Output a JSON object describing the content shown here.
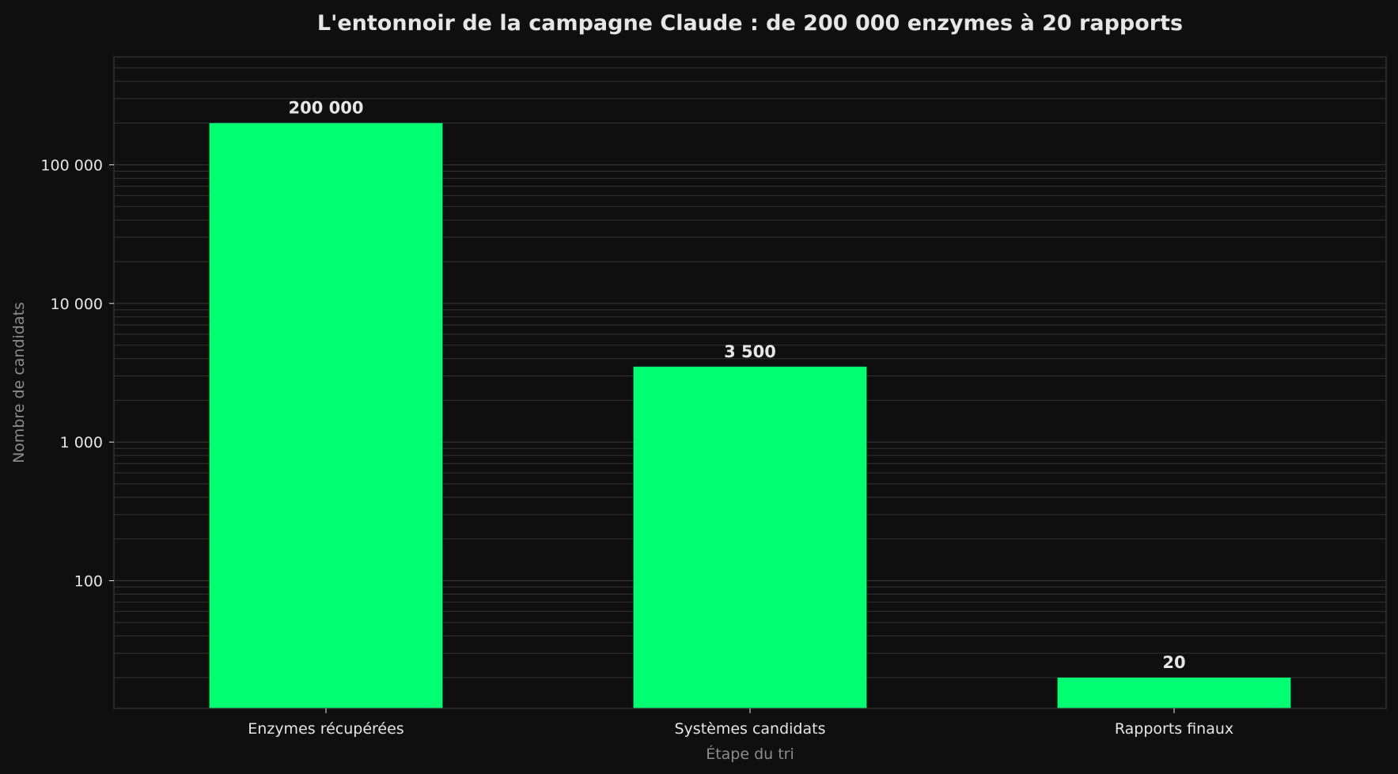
{
  "chart_data": {
    "type": "bar",
    "title": "L'entonnoir de la campagne Claude : de 200 000 enzymes à 20 rapports",
    "xlabel": "Étape du tri",
    "ylabel": "Nombre de candidats",
    "categories": [
      "Enzymes récupérées",
      "Systèmes candidats",
      "Rapports finaux"
    ],
    "values": [
      200000,
      3500,
      20
    ],
    "value_labels": [
      "200 000",
      "3 500",
      "20"
    ],
    "yscale": "log",
    "ylim": [
      12,
      600000
    ],
    "yticks": [
      {
        "value": 100,
        "label": "100"
      },
      {
        "value": 1000,
        "label": "1 000"
      },
      {
        "value": 10000,
        "label": "10 000"
      },
      {
        "value": 100000,
        "label": "100 000"
      }
    ],
    "grid": true,
    "legend": "none",
    "colors": {
      "background": "#0f0f0f",
      "bar": "#00ff73",
      "grid": "#333333",
      "spine": "#3a3a3a",
      "text": "#e6e6e6",
      "muted_text": "#8c8c8c"
    }
  }
}
